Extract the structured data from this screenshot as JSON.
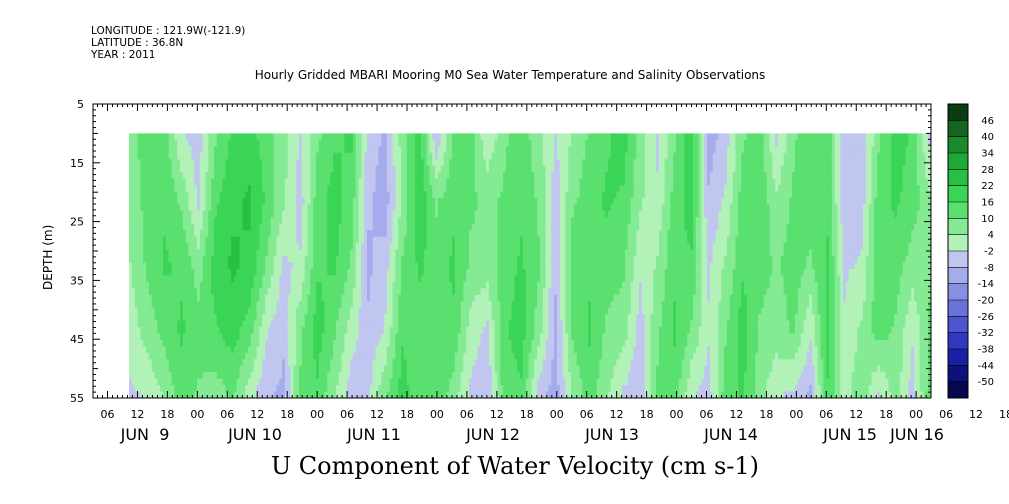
{
  "header": {
    "longitude": "LONGITUDE : 121.9W(-121.9)",
    "latitude": "LATITUDE : 36.8N",
    "year": "YEAR : 2011"
  },
  "plot_title": "Hourly Gridded MBARI Mooring M0 Sea Water Temperature and Salinity Observations",
  "main_title": "U Component of Water Velocity (cm s-1)",
  "chart_data": {
    "type": "heatmap",
    "ylabel": "DEPTH (m)",
    "y_inverted": true,
    "ylim": [
      5,
      55
    ],
    "y_ticks": [
      5,
      15,
      25,
      35,
      45,
      55
    ],
    "data_depth_range": [
      10,
      55
    ],
    "x_hour_ticks": [
      "06",
      "12",
      "18",
      "00",
      "06",
      "12",
      "18",
      "00",
      "06",
      "12",
      "18",
      "00",
      "06",
      "12",
      "18",
      "00",
      "06",
      "12",
      "18",
      "00",
      "06",
      "12",
      "18",
      "00",
      "06",
      "12",
      "18",
      "00",
      "06",
      "12",
      "18",
      "00"
    ],
    "x_day_labels": [
      "JUN  9",
      "JUN 10",
      "JUN 11",
      "JUN 12",
      "JUN 13",
      "JUN 14",
      "JUN 15",
      "JUN 16"
    ],
    "colorbar": {
      "labels": [
        "46",
        "40",
        "34",
        "28",
        "22",
        "16",
        "10",
        "4",
        "-2",
        "-8",
        "-14",
        "-20",
        "-26",
        "-32",
        "-38",
        "-44",
        "-50"
      ],
      "colors": [
        "#0b3d12",
        "#14651f",
        "#1a8a2a",
        "#1fa836",
        "#28c041",
        "#3ad456",
        "#5ae06f",
        "#84ea93",
        "#b2f2b8",
        "#c0c6f0",
        "#a4aceb",
        "#878fe3",
        "#6a72da",
        "#4c55cf",
        "#3038bf",
        "#1a20a3",
        "#0d1278",
        "#050850"
      ]
    },
    "time_columns_u_surface_to_bottom": [
      [
        3,
        2,
        1,
        -2,
        -6
      ],
      [
        12,
        10,
        8,
        4,
        -4
      ],
      [
        10,
        12,
        14,
        9,
        2
      ],
      [
        -4,
        6,
        12,
        14,
        10
      ],
      [
        -8,
        -6,
        4,
        10,
        6
      ],
      [
        6,
        12,
        16,
        12,
        4
      ],
      [
        14,
        18,
        20,
        16,
        8
      ],
      [
        16,
        20,
        18,
        10,
        -2
      ],
      [
        10,
        12,
        6,
        -4,
        -10
      ],
      [
        4,
        2,
        -6,
        -10,
        -12
      ],
      [
        -6,
        -8,
        -4,
        6,
        8
      ],
      [
        6,
        10,
        12,
        16,
        12
      ],
      [
        12,
        16,
        14,
        8,
        2
      ],
      [
        14,
        10,
        6,
        -2,
        -8
      ],
      [
        -8,
        -10,
        -12,
        -10,
        -6
      ],
      [
        -12,
        -14,
        -8,
        -4,
        6
      ],
      [
        4,
        2,
        8,
        12,
        16
      ],
      [
        16,
        18,
        14,
        10,
        8
      ],
      [
        -10,
        6,
        10,
        12,
        12
      ],
      [
        8,
        12,
        14,
        12,
        4
      ],
      [
        10,
        8,
        6,
        -2,
        -6
      ],
      [
        -4,
        6,
        4,
        -6,
        -10
      ],
      [
        6,
        8,
        10,
        12,
        10
      ],
      [
        10,
        12,
        14,
        16,
        12
      ],
      [
        4,
        6,
        8,
        4,
        -8
      ],
      [
        -6,
        -8,
        -10,
        -12,
        -14
      ],
      [
        2,
        6,
        10,
        8,
        2
      ],
      [
        8,
        10,
        12,
        14,
        10
      ],
      [
        12,
        14,
        10,
        6,
        2
      ],
      [
        16,
        12,
        8,
        4,
        -6
      ],
      [
        4,
        2,
        -4,
        -8,
        -10
      ],
      [
        -6,
        -4,
        2,
        6,
        8
      ],
      [
        6,
        10,
        12,
        14,
        10
      ],
      [
        18,
        16,
        12,
        6,
        -4
      ],
      [
        -14,
        -10,
        -6,
        -4,
        -8
      ],
      [
        -8,
        -4,
        2,
        6,
        10
      ],
      [
        6,
        10,
        12,
        16,
        14
      ],
      [
        10,
        12,
        10,
        6,
        4
      ],
      [
        -6,
        2,
        6,
        4,
        -4
      ],
      [
        6,
        8,
        10,
        8,
        -6
      ],
      [
        12,
        10,
        6,
        -4,
        -12
      ],
      [
        10,
        12,
        14,
        16,
        12
      ],
      [
        -8,
        -10,
        -6,
        -4,
        -2
      ],
      [
        -10,
        -8,
        -4,
        2,
        6
      ],
      [
        6,
        10,
        12,
        10,
        -6
      ],
      [
        16,
        14,
        10,
        6,
        4
      ],
      [
        12,
        10,
        4,
        -4,
        -8
      ],
      [
        -6,
        2,
        6,
        8,
        10
      ]
    ]
  }
}
